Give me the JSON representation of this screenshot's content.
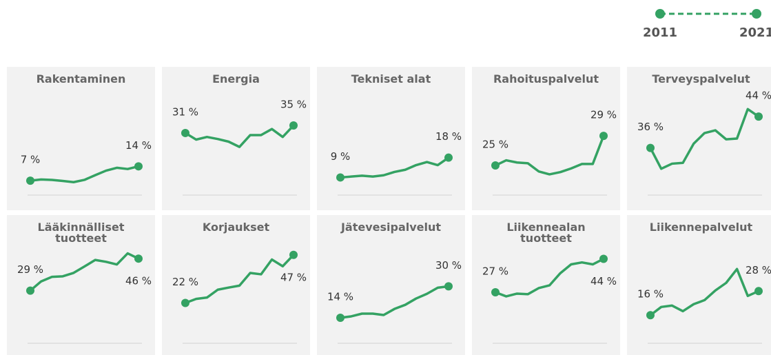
{
  "legend": {
    "labels": [
      "2011",
      "2021"
    ],
    "color": "#34a263"
  },
  "chart_data": [
    {
      "type": "line",
      "title": "Rakentaminen",
      "color": "#34a263",
      "ylim": [
        0,
        44
      ],
      "values": [
        7,
        7.6,
        7.4,
        6.9,
        6.3,
        7.4,
        9.7,
        11.9,
        13.3,
        12.7,
        14
      ],
      "value_labels": [
        "7 %",
        null,
        null,
        null,
        null,
        null,
        null,
        null,
        null,
        null,
        "14 %"
      ]
    },
    {
      "type": "line",
      "title": "Energia",
      "color": "#34a263",
      "ylim": [
        -2,
        46
      ],
      "values": [
        31,
        27.5,
        28.9,
        27.8,
        26.4,
        23.6,
        29.9,
        29.9,
        33.1,
        28.9,
        35
      ],
      "value_labels": [
        "31 %",
        null,
        null,
        null,
        null,
        null,
        null,
        null,
        null,
        null,
        "35 %"
      ]
    },
    {
      "type": "line",
      "title": "Tekniset alat",
      "color": "#34a263",
      "ylim": [
        1,
        42
      ],
      "values": [
        9,
        9.4,
        9.8,
        9.4,
        10,
        11.5,
        12.5,
        14.6,
        16,
        14.6,
        18
      ],
      "value_labels": [
        "9 %",
        null,
        null,
        null,
        null,
        null,
        null,
        null,
        null,
        null,
        "18 %"
      ]
    },
    {
      "type": "line",
      "title": "Rahoituspalvelut",
      "color": "#34a263",
      "ylim": [
        21,
        33.2
      ],
      "values": [
        25,
        25.7,
        25.4,
        25.3,
        24.2,
        23.8,
        24.1,
        24.6,
        25.2,
        25.2,
        29
      ],
      "value_labels": [
        "25 %",
        null,
        null,
        null,
        null,
        null,
        null,
        null,
        null,
        null,
        "29 %"
      ]
    },
    {
      "type": "line",
      "title": "Terveyspalvelut",
      "color": "#34a263",
      "ylim": [
        24,
        47
      ],
      "values": [
        36,
        30.7,
        32,
        32.2,
        37.1,
        39.8,
        40.5,
        38.2,
        38.4,
        45.9,
        44
      ],
      "value_labels": [
        "36 %",
        null,
        null,
        null,
        null,
        null,
        null,
        null,
        null,
        null,
        "44 %"
      ]
    },
    {
      "type": "line",
      "title": "Lääkinnälliset tuotteet",
      "color": "#34a263",
      "ylim": [
        1,
        49
      ],
      "values": [
        29,
        33.9,
        36.3,
        36.6,
        38.4,
        41.8,
        45.3,
        44.3,
        42.9,
        48.8,
        46
      ],
      "value_labels": [
        "29 %",
        null,
        null,
        null,
        null,
        null,
        null,
        null,
        null,
        null,
        "46 %"
      ]
    },
    {
      "type": "line",
      "title": "Korjaukset",
      "color": "#34a263",
      "ylim": [
        1,
        48
      ],
      "values": [
        22,
        24.1,
        24.8,
        28.9,
        30,
        31,
        37.6,
        36.9,
        44.6,
        41.1,
        47
      ],
      "value_labels": [
        "22 %",
        null,
        null,
        null,
        null,
        null,
        null,
        null,
        null,
        null,
        "47 %"
      ]
    },
    {
      "type": "line",
      "title": "Jätevesipalvelut",
      "color": "#34a263",
      "ylim": [
        1,
        47
      ],
      "values": [
        14,
        14.7,
        16.1,
        16.1,
        15.4,
        18.5,
        20.6,
        23.8,
        26.2,
        29.3,
        30
      ],
      "value_labels": [
        "14 %",
        null,
        null,
        null,
        null,
        null,
        null,
        null,
        null,
        null,
        "30 %"
      ]
    },
    {
      "type": "line",
      "title": "Liikennealan tuotteet",
      "color": "#34a263",
      "ylim": [
        1,
        47
      ],
      "values": [
        27,
        24.9,
        26.3,
        26,
        29.1,
        30.5,
        36.7,
        41.2,
        42.2,
        41.2,
        44
      ],
      "value_labels": [
        "27 %",
        null,
        null,
        null,
        null,
        null,
        null,
        null,
        null,
        null,
        "44 %"
      ]
    },
    {
      "type": "line",
      "title": "Liikennepalvelut",
      "color": "#34a263",
      "ylim": [
        2,
        47
      ],
      "values": [
        16,
        20.1,
        20.8,
        18,
        21.5,
        23.5,
        28.3,
        32.1,
        39,
        25.6,
        28
      ],
      "value_labels": [
        "16 %",
        null,
        null,
        null,
        null,
        null,
        null,
        null,
        null,
        null,
        "28 %"
      ]
    }
  ]
}
